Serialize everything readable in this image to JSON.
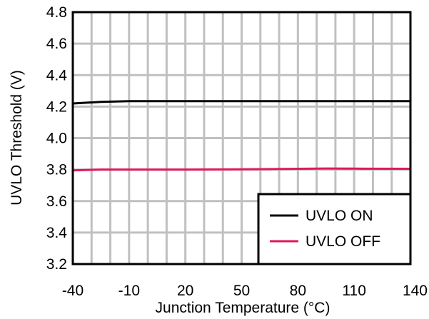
{
  "chart_data": {
    "type": "line",
    "title": "",
    "xlabel": "Junction Temperature (°C)",
    "ylabel": "UVLO Threshold (V)",
    "xlim": [
      -40,
      140
    ],
    "ylim": [
      3.2,
      4.8
    ],
    "x_ticks": [
      "-40",
      "-10",
      "20",
      "50",
      "80",
      "110",
      "140"
    ],
    "y_ticks": [
      "3.2",
      "3.4",
      "3.6",
      "3.8",
      "4.0",
      "4.2",
      "4.4",
      "4.6",
      "4.8"
    ],
    "grid": true,
    "legend_position": "bottom-right",
    "series": [
      {
        "name": "UVLO ON",
        "color": "#000000",
        "x": [
          -40,
          -25,
          -10,
          0,
          20,
          50,
          80,
          110,
          140
        ],
        "y": [
          4.22,
          4.23,
          4.235,
          4.235,
          4.235,
          4.235,
          4.235,
          4.235,
          4.235
        ]
      },
      {
        "name": "UVLO OFF",
        "color": "#e0195a",
        "x": [
          -40,
          -25,
          -10,
          20,
          50,
          80,
          95,
          110,
          140
        ],
        "y": [
          3.795,
          3.8,
          3.8,
          3.8,
          3.802,
          3.805,
          3.807,
          3.806,
          3.805
        ]
      }
    ]
  }
}
